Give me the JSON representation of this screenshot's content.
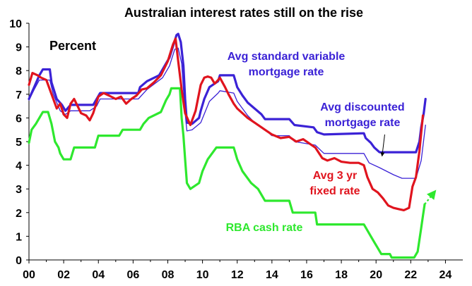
{
  "chart_data": {
    "type": "line",
    "title": "Australian interest rates still  on the rise",
    "unit_label": "Percent",
    "xlabel": "",
    "ylabel": "",
    "xlim": [
      2000,
      2025
    ],
    "ylim": [
      0,
      10
    ],
    "x_ticks": [
      2000,
      2002,
      2004,
      2006,
      2008,
      2010,
      2012,
      2014,
      2016,
      2018,
      2020,
      2022,
      2024
    ],
    "x_tick_labels": [
      "00",
      "02",
      "04",
      "06",
      "08",
      "10",
      "12",
      "14",
      "16",
      "18",
      "20",
      "22",
      "24"
    ],
    "y_ticks": [
      0,
      1,
      2,
      3,
      4,
      5,
      6,
      7,
      8,
      9,
      10
    ],
    "y_tick_labels": [
      "0",
      "1",
      "2",
      "3",
      "4",
      "5",
      "6",
      "7",
      "8",
      "9",
      "10"
    ],
    "grid": false,
    "legend": "direct labels",
    "series": [
      {
        "name": "Avg standard variable mortgage rate",
        "label_lines": [
          "Avg standard variable",
          "mortgage rate"
        ],
        "color": "#3b22d6",
        "line": "thick",
        "points": [
          [
            2000.0,
            6.8
          ],
          [
            2000.3,
            7.3
          ],
          [
            2000.6,
            7.8
          ],
          [
            2000.8,
            8.05
          ],
          [
            2001.2,
            8.05
          ],
          [
            2001.3,
            7.5
          ],
          [
            2001.6,
            6.8
          ],
          [
            2001.9,
            6.55
          ],
          [
            2002.1,
            6.3
          ],
          [
            2002.4,
            6.55
          ],
          [
            2002.6,
            6.55
          ],
          [
            2003.4,
            6.55
          ],
          [
            2003.7,
            6.55
          ],
          [
            2003.9,
            6.8
          ],
          [
            2004.1,
            7.05
          ],
          [
            2005.0,
            7.05
          ],
          [
            2005.2,
            7.05
          ],
          [
            2006.3,
            7.05
          ],
          [
            2006.4,
            7.3
          ],
          [
            2006.8,
            7.55
          ],
          [
            2007.5,
            7.8
          ],
          [
            2007.7,
            8.05
          ],
          [
            2007.9,
            8.3
          ],
          [
            2008.1,
            8.55
          ],
          [
            2008.5,
            9.5
          ],
          [
            2008.6,
            9.55
          ],
          [
            2008.75,
            9.2
          ],
          [
            2008.9,
            8.2
          ],
          [
            2009.0,
            6.8
          ],
          [
            2009.1,
            5.8
          ],
          [
            2009.4,
            5.75
          ],
          [
            2009.8,
            6.0
          ],
          [
            2009.9,
            6.3
          ],
          [
            2010.1,
            6.8
          ],
          [
            2010.4,
            7.3
          ],
          [
            2010.9,
            7.55
          ],
          [
            2011.0,
            7.8
          ],
          [
            2011.8,
            7.8
          ],
          [
            2011.9,
            7.55
          ],
          [
            2012.0,
            7.3
          ],
          [
            2012.3,
            6.95
          ],
          [
            2012.6,
            6.65
          ],
          [
            2013.0,
            6.4
          ],
          [
            2013.4,
            6.15
          ],
          [
            2013.6,
            5.95
          ],
          [
            2015.0,
            5.95
          ],
          [
            2015.3,
            5.7
          ],
          [
            2016.4,
            5.6
          ],
          [
            2016.6,
            5.4
          ],
          [
            2017.0,
            5.3
          ],
          [
            2019.3,
            5.35
          ],
          [
            2019.4,
            5.15
          ],
          [
            2019.7,
            4.95
          ],
          [
            2019.9,
            4.75
          ],
          [
            2020.2,
            4.55
          ],
          [
            2022.3,
            4.55
          ],
          [
            2022.5,
            5.0
          ],
          [
            2022.6,
            5.6
          ],
          [
            2022.75,
            6.2
          ],
          [
            2022.85,
            6.8
          ]
        ]
      },
      {
        "name": "Avg discounted mortgage rate",
        "label_lines": [
          "Avg discounted",
          "mortgage rate"
        ],
        "color": "#3b22d6",
        "line": "thin",
        "points": [
          [
            2000.0,
            6.75
          ],
          [
            2000.3,
            7.2
          ],
          [
            2000.6,
            7.6
          ],
          [
            2001.2,
            7.6
          ],
          [
            2001.4,
            7.0
          ],
          [
            2001.8,
            6.3
          ],
          [
            2002.1,
            6.15
          ],
          [
            2002.4,
            6.3
          ],
          [
            2003.5,
            6.3
          ],
          [
            2003.9,
            6.5
          ],
          [
            2004.1,
            6.8
          ],
          [
            2006.3,
            6.8
          ],
          [
            2006.8,
            7.2
          ],
          [
            2007.7,
            7.7
          ],
          [
            2008.1,
            8.2
          ],
          [
            2008.4,
            8.9
          ],
          [
            2008.6,
            8.95
          ],
          [
            2008.8,
            8.3
          ],
          [
            2009.0,
            6.2
          ],
          [
            2009.1,
            5.45
          ],
          [
            2009.4,
            5.5
          ],
          [
            2009.9,
            5.8
          ],
          [
            2010.4,
            6.7
          ],
          [
            2010.9,
            7.05
          ],
          [
            2011.0,
            7.15
          ],
          [
            2011.8,
            7.05
          ],
          [
            2012.0,
            6.7
          ],
          [
            2012.6,
            6.1
          ],
          [
            2013.0,
            5.8
          ],
          [
            2013.6,
            5.5
          ],
          [
            2014.0,
            5.25
          ],
          [
            2015.0,
            5.25
          ],
          [
            2015.3,
            5.0
          ],
          [
            2016.5,
            4.85
          ],
          [
            2017.0,
            4.5
          ],
          [
            2019.3,
            4.5
          ],
          [
            2019.6,
            4.1
          ],
          [
            2020.2,
            3.9
          ],
          [
            2021.0,
            3.6
          ],
          [
            2021.5,
            3.45
          ],
          [
            2022.3,
            3.45
          ],
          [
            2022.6,
            4.2
          ],
          [
            2022.85,
            5.7
          ]
        ]
      },
      {
        "name": "Avg 3 yr fixed rate",
        "label_lines": [
          "Avg 3 yr",
          "fixed rate"
        ],
        "color": "#e0141e",
        "line": "thick",
        "points": [
          [
            2000.0,
            7.4
          ],
          [
            2000.2,
            7.9
          ],
          [
            2000.5,
            7.8
          ],
          [
            2000.7,
            7.7
          ],
          [
            2001.0,
            7.6
          ],
          [
            2001.4,
            6.8
          ],
          [
            2001.6,
            6.4
          ],
          [
            2001.8,
            6.6
          ],
          [
            2002.0,
            6.15
          ],
          [
            2002.2,
            6.0
          ],
          [
            2002.4,
            6.6
          ],
          [
            2002.6,
            6.8
          ],
          [
            2002.8,
            6.5
          ],
          [
            2003.0,
            6.2
          ],
          [
            2003.3,
            6.1
          ],
          [
            2003.5,
            5.9
          ],
          [
            2003.7,
            6.2
          ],
          [
            2004.0,
            6.9
          ],
          [
            2004.3,
            7.05
          ],
          [
            2004.6,
            6.95
          ],
          [
            2005.0,
            6.8
          ],
          [
            2005.3,
            6.9
          ],
          [
            2005.6,
            6.6
          ],
          [
            2005.9,
            6.8
          ],
          [
            2006.2,
            6.95
          ],
          [
            2006.5,
            7.2
          ],
          [
            2006.8,
            7.25
          ],
          [
            2007.2,
            7.5
          ],
          [
            2007.6,
            7.8
          ],
          [
            2008.0,
            8.4
          ],
          [
            2008.3,
            9.1
          ],
          [
            2008.45,
            9.35
          ],
          [
            2008.6,
            8.4
          ],
          [
            2008.8,
            7.2
          ],
          [
            2009.0,
            6.2
          ],
          [
            2009.3,
            5.7
          ],
          [
            2009.6,
            6.3
          ],
          [
            2009.9,
            7.4
          ],
          [
            2010.1,
            7.7
          ],
          [
            2010.3,
            7.75
          ],
          [
            2010.5,
            7.7
          ],
          [
            2010.7,
            7.45
          ],
          [
            2010.9,
            7.6
          ],
          [
            2011.0,
            7.7
          ],
          [
            2011.3,
            7.3
          ],
          [
            2011.5,
            7.0
          ],
          [
            2011.8,
            6.6
          ],
          [
            2012.0,
            6.4
          ],
          [
            2012.3,
            6.2
          ],
          [
            2012.6,
            6.0
          ],
          [
            2013.0,
            5.8
          ],
          [
            2013.4,
            5.6
          ],
          [
            2013.7,
            5.45
          ],
          [
            2014.0,
            5.3
          ],
          [
            2014.5,
            5.15
          ],
          [
            2015.0,
            5.2
          ],
          [
            2015.4,
            5.0
          ],
          [
            2015.8,
            5.1
          ],
          [
            2016.2,
            4.9
          ],
          [
            2016.5,
            4.75
          ],
          [
            2016.9,
            4.3
          ],
          [
            2017.2,
            4.2
          ],
          [
            2017.6,
            4.3
          ],
          [
            2018.0,
            4.15
          ],
          [
            2018.5,
            4.1
          ],
          [
            2019.0,
            4.1
          ],
          [
            2019.3,
            4.0
          ],
          [
            2019.5,
            3.5
          ],
          [
            2019.8,
            3.0
          ],
          [
            2020.1,
            2.85
          ],
          [
            2020.4,
            2.6
          ],
          [
            2020.7,
            2.3
          ],
          [
            2021.0,
            2.2
          ],
          [
            2021.3,
            2.15
          ],
          [
            2021.6,
            2.1
          ],
          [
            2021.9,
            2.2
          ],
          [
            2022.1,
            3.1
          ],
          [
            2022.3,
            3.5
          ],
          [
            2022.5,
            4.6
          ],
          [
            2022.7,
            6.1
          ]
        ]
      },
      {
        "name": "RBA cash rate",
        "label_lines": [
          "RBA cash rate"
        ],
        "color": "#2ee82e",
        "line": "thick",
        "points": [
          [
            2000.0,
            4.95
          ],
          [
            2000.15,
            5.5
          ],
          [
            2000.4,
            5.75
          ],
          [
            2000.6,
            6.0
          ],
          [
            2000.8,
            6.25
          ],
          [
            2001.1,
            6.25
          ],
          [
            2001.3,
            5.75
          ],
          [
            2001.5,
            5.0
          ],
          [
            2001.7,
            4.75
          ],
          [
            2001.8,
            4.5
          ],
          [
            2002.0,
            4.25
          ],
          [
            2002.4,
            4.25
          ],
          [
            2002.6,
            4.75
          ],
          [
            2003.8,
            4.75
          ],
          [
            2004.0,
            5.25
          ],
          [
            2005.2,
            5.25
          ],
          [
            2005.4,
            5.5
          ],
          [
            2006.4,
            5.5
          ],
          [
            2006.6,
            5.75
          ],
          [
            2006.9,
            6.0
          ],
          [
            2007.6,
            6.25
          ],
          [
            2007.9,
            6.75
          ],
          [
            2008.1,
            7.0
          ],
          [
            2008.2,
            7.25
          ],
          [
            2008.7,
            7.25
          ],
          [
            2008.8,
            6.0
          ],
          [
            2008.9,
            5.25
          ],
          [
            2009.0,
            4.25
          ],
          [
            2009.1,
            3.25
          ],
          [
            2009.3,
            3.0
          ],
          [
            2009.8,
            3.25
          ],
          [
            2009.9,
            3.5
          ],
          [
            2010.0,
            3.75
          ],
          [
            2010.3,
            4.25
          ],
          [
            2010.8,
            4.75
          ],
          [
            2011.8,
            4.75
          ],
          [
            2011.9,
            4.5
          ],
          [
            2012.0,
            4.25
          ],
          [
            2012.3,
            3.75
          ],
          [
            2012.8,
            3.25
          ],
          [
            2013.2,
            3.0
          ],
          [
            2013.4,
            2.75
          ],
          [
            2013.6,
            2.5
          ],
          [
            2015.0,
            2.5
          ],
          [
            2015.2,
            2.0
          ],
          [
            2016.5,
            2.0
          ],
          [
            2016.6,
            1.5
          ],
          [
            2019.3,
            1.5
          ],
          [
            2019.5,
            1.25
          ],
          [
            2019.7,
            1.0
          ],
          [
            2019.9,
            0.75
          ],
          [
            2020.1,
            0.5
          ],
          [
            2020.3,
            0.25
          ],
          [
            2020.8,
            0.25
          ],
          [
            2020.9,
            0.1
          ],
          [
            2022.2,
            0.1
          ],
          [
            2022.4,
            0.35
          ],
          [
            2022.5,
            0.85
          ],
          [
            2022.6,
            1.35
          ],
          [
            2022.7,
            1.85
          ],
          [
            2022.8,
            2.35
          ]
        ]
      }
    ],
    "annotations": [
      {
        "series": "RBA cash rate",
        "kind": "dashed-arrow-projection",
        "from": [
          2022.8,
          2.35
        ],
        "to": [
          2023.4,
          2.9
        ]
      },
      {
        "series": "Avg discounted mortgage rate",
        "kind": "pointer-arrow",
        "from": [
          2020.5,
          5.3
        ],
        "to": [
          2020.35,
          4.4
        ]
      }
    ]
  },
  "colors": {
    "variable": "#3b22d6",
    "discounted": "#3b22d6",
    "fixed": "#e0141e",
    "cash": "#2ee82e",
    "axis": "#000000"
  }
}
